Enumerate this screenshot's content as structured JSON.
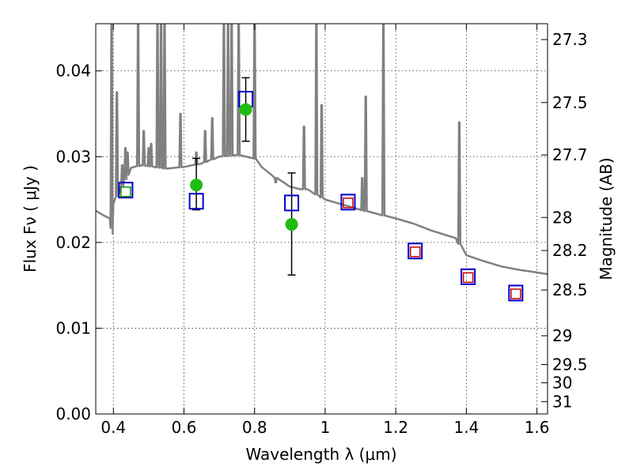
{
  "chart_data": {
    "type": "scatter",
    "xlabel": "Wavelength  λ (μm)",
    "ylabel": "Flux  Fν  ( μJy )",
    "ylabel_right": "Magnitude (AB)",
    "xlim": [
      0.35,
      1.63
    ],
    "ylim": [
      0.0,
      0.0455
    ],
    "grid": true,
    "x_ticks": [
      {
        "value": 0.4,
        "label": "0.4"
      },
      {
        "value": 0.6,
        "label": "0.6"
      },
      {
        "value": 0.8,
        "label": "0.8"
      },
      {
        "value": 1.0,
        "label": "1"
      },
      {
        "value": 1.2,
        "label": "1.2"
      },
      {
        "value": 1.4,
        "label": "1.4"
      },
      {
        "value": 1.6,
        "label": "1.6"
      }
    ],
    "y_ticks": [
      {
        "value": 0.0,
        "label": "0.00"
      },
      {
        "value": 0.01,
        "label": "0.01"
      },
      {
        "value": 0.02,
        "label": "0.02"
      },
      {
        "value": 0.03,
        "label": "0.03"
      },
      {
        "value": 0.04,
        "label": "0.04"
      }
    ],
    "right_ticks": [
      {
        "mag": 27.3,
        "label": "27.3"
      },
      {
        "mag": 27.5,
        "label": "27.5"
      },
      {
        "mag": 27.7,
        "label": "27.7"
      },
      {
        "mag": 28.0,
        "label": "28"
      },
      {
        "mag": 28.2,
        "label": "28.2"
      },
      {
        "mag": 28.5,
        "label": "28.5"
      },
      {
        "mag": 29.0,
        "label": "29"
      },
      {
        "mag": 29.5,
        "label": "29.5"
      },
      {
        "mag": 30.0,
        "label": "30"
      },
      {
        "mag": 31.0,
        "label": "31"
      }
    ],
    "series": [
      {
        "kind": "template_spectrum",
        "color": "#808080",
        "continuum": [
          [
            0.35,
            0.0237
          ],
          [
            0.37,
            0.0232
          ],
          [
            0.39,
            0.0228
          ],
          [
            0.398,
            0.021
          ],
          [
            0.4,
            0.0245
          ],
          [
            0.42,
            0.0262
          ],
          [
            0.45,
            0.0287
          ],
          [
            0.48,
            0.029
          ],
          [
            0.5,
            0.0289
          ],
          [
            0.55,
            0.0286
          ],
          [
            0.6,
            0.0288
          ],
          [
            0.65,
            0.0292
          ],
          [
            0.7,
            0.03
          ],
          [
            0.75,
            0.0302
          ],
          [
            0.8,
            0.0298
          ],
          [
            0.82,
            0.0288
          ],
          [
            0.85,
            0.0278
          ],
          [
            0.9,
            0.0265
          ],
          [
            0.93,
            0.0262
          ],
          [
            0.95,
            0.0262
          ],
          [
            1.0,
            0.025
          ],
          [
            1.05,
            0.0244
          ],
          [
            1.1,
            0.0238
          ],
          [
            1.15,
            0.0233
          ],
          [
            1.2,
            0.0228
          ],
          [
            1.25,
            0.0222
          ],
          [
            1.3,
            0.0214
          ],
          [
            1.37,
            0.0205
          ],
          [
            1.4,
            0.0185
          ],
          [
            1.45,
            0.0178
          ],
          [
            1.5,
            0.0172
          ],
          [
            1.55,
            0.0168
          ],
          [
            1.6,
            0.0165
          ],
          [
            1.63,
            0.0163
          ]
        ],
        "lines": [
          [
            0.395,
            0.0455
          ],
          [
            0.41,
            0.0375
          ],
          [
            0.425,
            0.029
          ],
          [
            0.434,
            0.031
          ],
          [
            0.44,
            0.0305
          ],
          [
            0.47,
            0.0455
          ],
          [
            0.486,
            0.033
          ],
          [
            0.5,
            0.031
          ],
          [
            0.507,
            0.0315
          ],
          [
            0.525,
            0.0455
          ],
          [
            0.535,
            0.0455
          ],
          [
            0.545,
            0.0455
          ],
          [
            0.59,
            0.035
          ],
          [
            0.635,
            0.0305
          ],
          [
            0.66,
            0.033
          ],
          [
            0.68,
            0.0345
          ],
          [
            0.713,
            0.0455
          ],
          [
            0.725,
            0.0455
          ],
          [
            0.735,
            0.0455
          ],
          [
            0.755,
            0.0455
          ],
          [
            0.8,
            0.0455
          ],
          [
            0.86,
            0.027
          ],
          [
            0.94,
            0.0335
          ],
          [
            0.975,
            0.0455
          ],
          [
            0.99,
            0.036
          ],
          [
            1.105,
            0.0275
          ],
          [
            1.115,
            0.037
          ],
          [
            1.165,
            0.0455
          ],
          [
            1.38,
            0.034
          ]
        ]
      },
      {
        "kind": "model_photometry_blue",
        "color": "#0000cc",
        "points": [
          [
            0.435,
            0.0261
          ],
          [
            0.635,
            0.0248
          ],
          [
            0.775,
            0.0367
          ],
          [
            0.905,
            0.0246
          ],
          [
            1.065,
            0.0247
          ],
          [
            1.255,
            0.019
          ],
          [
            1.405,
            0.016
          ],
          [
            1.54,
            0.0141
          ]
        ]
      },
      {
        "kind": "model_photometry_inner",
        "points": [
          {
            "x": 0.435,
            "y": 0.0259,
            "color": "#009900"
          },
          {
            "x": 1.065,
            "y": 0.0246,
            "color": "#cc0000"
          },
          {
            "x": 1.255,
            "y": 0.0189,
            "color": "#cc0000"
          },
          {
            "x": 1.405,
            "y": 0.0159,
            "color": "#cc0000"
          },
          {
            "x": 1.54,
            "y": 0.014,
            "color": "#cc0000"
          }
        ]
      },
      {
        "kind": "observed",
        "color": "#22bb11",
        "points": [
          {
            "x": 0.635,
            "y": 0.0267,
            "err": [
              0.0238,
              0.0298
            ]
          },
          {
            "x": 0.775,
            "y": 0.0355,
            "err": [
              0.0318,
              0.0392
            ]
          },
          {
            "x": 0.905,
            "y": 0.0221,
            "err": [
              0.0162,
              0.0281
            ]
          }
        ]
      }
    ]
  }
}
